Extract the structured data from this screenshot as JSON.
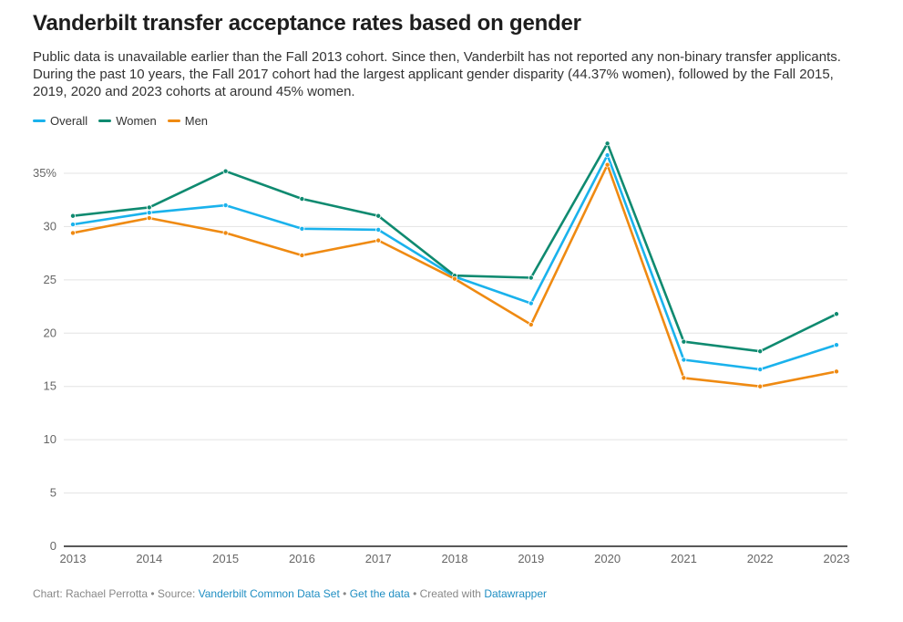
{
  "title": "Vanderbilt transfer acceptance rates based on gender",
  "subtitle": "Public data is unavailable earlier than the Fall 2013 cohort. Since then, Vanderbilt has not reported any non-binary transfer applicants. During the past 10 years, the Fall 2017 cohort had the largest applicant gender disparity (44.37% women), followed by the Fall 2015, 2019, 2020 and 2023 cohorts at around 45% women.",
  "footer": {
    "prefix": "Chart: Rachael Perrotta • Source: ",
    "source_link": "Vanderbilt Common Data Set",
    "sep1": " • ",
    "data_link": "Get the data",
    "sep2": " • Created with ",
    "tool_link": "Datawrapper"
  },
  "chart_data": {
    "type": "line",
    "title": "Vanderbilt transfer acceptance rates based on gender",
    "xlabel": "",
    "ylabel": "",
    "x": [
      2013,
      2014,
      2015,
      2016,
      2017,
      2018,
      2019,
      2020,
      2021,
      2022,
      2023
    ],
    "ylim": [
      0,
      38
    ],
    "yticks": [
      0,
      5,
      10,
      15,
      20,
      25,
      30,
      35
    ],
    "ytick_labels": [
      "0",
      "5",
      "10",
      "15",
      "20",
      "25",
      "30",
      "35%"
    ],
    "grid": true,
    "legend_position": "top-left",
    "series": [
      {
        "name": "Overall",
        "color": "#1ab2ec",
        "values": [
          30.2,
          31.3,
          32.0,
          29.8,
          29.7,
          25.3,
          22.8,
          36.7,
          17.5,
          16.6,
          18.9
        ]
      },
      {
        "name": "Women",
        "color": "#0f8a70",
        "values": [
          31.0,
          31.8,
          35.2,
          32.6,
          31.0,
          25.4,
          25.2,
          37.8,
          19.2,
          18.3,
          21.8
        ]
      },
      {
        "name": "Men",
        "color": "#ef8a12",
        "values": [
          29.4,
          30.8,
          29.4,
          27.3,
          28.7,
          25.1,
          20.8,
          35.8,
          15.8,
          15.0,
          16.4
        ]
      }
    ]
  }
}
